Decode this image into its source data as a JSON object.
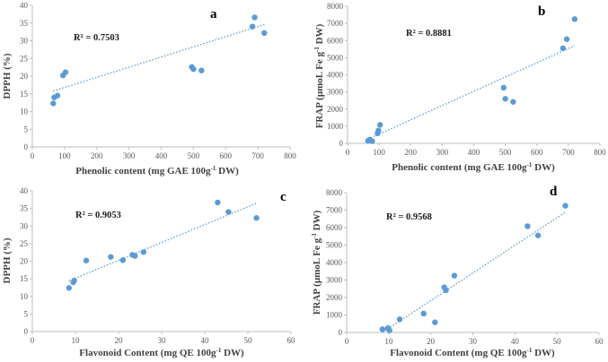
{
  "chart_data": [
    {
      "type": "scatter",
      "panel_label": "a",
      "xlabel": "Phenolic content (mg GAE 100g-1 DW)",
      "ylabel": "DPPH (%)",
      "xlim": [
        0,
        800
      ],
      "ylim": [
        0,
        40
      ],
      "xticks": [
        "0",
        "100",
        "200",
        "300",
        "400",
        "500",
        "600",
        "700",
        "800"
      ],
      "yticks": [
        "0",
        "5",
        "10",
        "15",
        "20",
        "25",
        "30",
        "35",
        "40"
      ],
      "x": [
        65,
        68,
        78,
        95,
        103,
        495,
        500,
        525,
        683,
        690,
        720
      ],
      "y": [
        12.3,
        14,
        14.5,
        20.2,
        21.1,
        22.6,
        22,
        21.6,
        34,
        36.6,
        32.2
      ],
      "trendline": {
        "x": [
          65,
          720
        ],
        "y": [
          15.8,
          34.6
        ]
      },
      "annotation": "R² = 0.7503",
      "point_color": "#5b9bd5",
      "trend_color": "#5b9bd5"
    },
    {
      "type": "scatter",
      "panel_label": "b",
      "xlabel": "Phenolic content (mg GAE 100g-1 DW)",
      "ylabel": "FRAP (μmoL Fe g-1 DW)",
      "xlim": [
        0,
        800
      ],
      "ylim": [
        0,
        8000
      ],
      "xticks": [
        "0",
        "100",
        "200",
        "300",
        "400",
        "500",
        "600",
        "700",
        "800"
      ],
      "yticks": [
        "0",
        "1000",
        "2000",
        "3000",
        "4000",
        "5000",
        "6000",
        "7000",
        "8000"
      ],
      "x": [
        65,
        70,
        78,
        95,
        98,
        103,
        495,
        500,
        525,
        683,
        695,
        720
      ],
      "y": [
        150,
        220,
        130,
        580,
        750,
        1080,
        3250,
        2600,
        2420,
        5550,
        6080,
        7250
      ],
      "trendline": {
        "x": [
          65,
          720
        ],
        "y": [
          250,
          5700
        ]
      },
      "annotation": "R² = 0.8881",
      "point_color": "#5b9bd5",
      "trend_color": "#5b9bd5"
    },
    {
      "type": "scatter",
      "panel_label": "c",
      "xlabel": "Flavonoid Content (mg QE 100g-1 DW)",
      "ylabel": "DPPH (%)",
      "xlim": [
        0,
        60
      ],
      "ylim": [
        0,
        40
      ],
      "xticks": [
        "0",
        "10",
        "20",
        "30",
        "40",
        "50",
        "60"
      ],
      "yticks": [
        "0",
        "5",
        "10",
        "15",
        "20",
        "25",
        "30",
        "35",
        "40"
      ],
      "x": [
        8.5,
        9.5,
        9.7,
        12.5,
        18.2,
        21,
        23.2,
        23.8,
        25.8,
        43,
        45.5,
        52
      ],
      "y": [
        12.4,
        14,
        14.5,
        20.2,
        21.2,
        20.3,
        21.8,
        21.5,
        22.6,
        36.7,
        34,
        32.3
      ],
      "trendline": {
        "x": [
          8.5,
          52
        ],
        "y": [
          14.4,
          36.5
        ]
      },
      "annotation": "R² = 0.9053",
      "point_color": "#5b9bd5",
      "trend_color": "#5b9bd5"
    },
    {
      "type": "scatter",
      "panel_label": "d",
      "xlabel": "Flavonoid Content (mg QE 100g-1 DW)",
      "ylabel": "FRAP (μmoL Fe g-1 DW)",
      "xlim": [
        0,
        60
      ],
      "ylim": [
        0,
        8000
      ],
      "xticks": [
        "0",
        "10",
        "20",
        "30",
        "40",
        "50",
        "60"
      ],
      "yticks": [
        "0",
        "1000",
        "2000",
        "3000",
        "4000",
        "5000",
        "6000",
        "7000",
        "8000"
      ],
      "x": [
        8.5,
        9.8,
        10.2,
        12.6,
        18.3,
        21,
        23.2,
        23.6,
        25.6,
        43,
        45.5,
        52
      ],
      "y": [
        180,
        250,
        120,
        750,
        1080,
        580,
        2580,
        2420,
        3250,
        6080,
        5550,
        7250
      ],
      "trendline": {
        "x": [
          8.5,
          52
        ],
        "y": [
          0,
          6880
        ]
      },
      "annotation": "R² = 0.9568",
      "point_color": "#5b9bd5",
      "trend_color": "#5b9bd5"
    }
  ]
}
